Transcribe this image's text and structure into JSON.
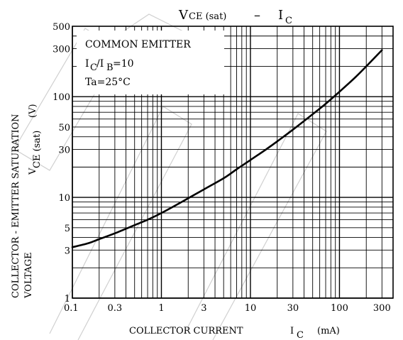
{
  "chart_data": {
    "type": "line",
    "title": "V",
    "title_sub": "CE (sat)",
    "title_dash": "–",
    "title_var": "I",
    "title_var_sub": "C",
    "xscale": "log",
    "yscale": "log",
    "xlim": [
      0.1,
      400
    ],
    "ylim": [
      1,
      500
    ],
    "grid": true,
    "xticks": [
      {
        "v": 0.1,
        "label": "0.1"
      },
      {
        "v": 0.3,
        "label": "0.3"
      },
      {
        "v": 1,
        "label": "1"
      },
      {
        "v": 3,
        "label": "3"
      },
      {
        "v": 10,
        "label": "10"
      },
      {
        "v": 30,
        "label": "30"
      },
      {
        "v": 100,
        "label": "100"
      },
      {
        "v": 300,
        "label": "300"
      }
    ],
    "yticks": [
      {
        "v": 1,
        "label": "1"
      },
      {
        "v": 3,
        "label": "3"
      },
      {
        "v": 5,
        "label": "5"
      },
      {
        "v": 10,
        "label": "10"
      },
      {
        "v": 30,
        "label": "30"
      },
      {
        "v": 50,
        "label": "50"
      },
      {
        "v": 100,
        "label": "100"
      },
      {
        "v": 300,
        "label": "300"
      },
      {
        "v": 500,
        "label": "500"
      }
    ],
    "xlabel": {
      "main": "COLLECTOR CURRENT",
      "var": "I",
      "sub": "C",
      "unit": "(mA)"
    },
    "ylabel": {
      "line1": "COLLECTOR - EMITTER SATURATION",
      "line2_var": "V",
      "line2_sub": "CE (sat)",
      "line2_unit": "(V)",
      "line3": "VOLTAGE"
    },
    "annotation": {
      "line1": "COMMON EMITTER",
      "line2_a": "I",
      "line2_a_sub": "C",
      "line2_b": "/I",
      "line2_b_sub": "B",
      "line2_c": "=10",
      "line3": "Ta=25°C"
    },
    "series": [
      {
        "x": [
          0.1,
          0.15,
          0.2,
          0.3,
          0.5,
          0.7,
          1,
          1.5,
          2,
          3,
          5,
          7,
          10,
          15,
          20,
          30,
          50,
          70,
          100,
          150,
          200,
          300
        ],
        "y": [
          3.2,
          3.5,
          3.85,
          4.4,
          5.3,
          6.0,
          7.0,
          8.5,
          9.8,
          12.0,
          15.5,
          19,
          23.5,
          30,
          36,
          47,
          67,
          85,
          112,
          155,
          200,
          290
        ]
      }
    ]
  }
}
